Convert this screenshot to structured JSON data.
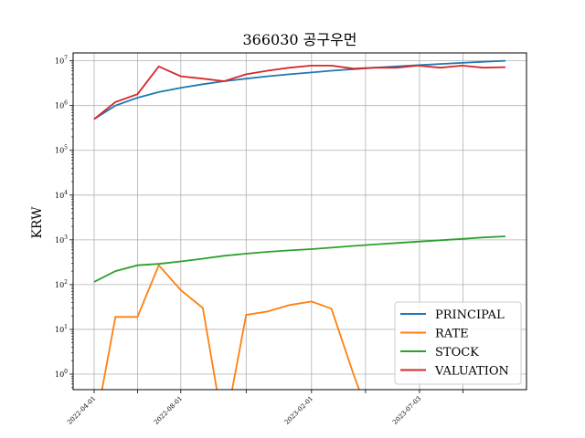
{
  "chart_data": {
    "type": "line",
    "title": "366030 공구우먼",
    "ylabel": "KRW",
    "xlabel": "",
    "yscale": "log",
    "ylim": [
      0.45,
      15000000
    ],
    "grid": true,
    "legend_position": "lower-right",
    "x_ticks": [
      "2022-04-01",
      "2022-08-01",
      "2023-02-01",
      "2023-07-03"
    ],
    "y_ticks": [
      "10^0",
      "10^1",
      "10^2",
      "10^3",
      "10^4",
      "10^5",
      "10^6",
      "10^7"
    ],
    "x": [
      "2022-04-01",
      "2022-05-01",
      "2022-06-01",
      "2022-07-01",
      "2022-08-01",
      "2022-09-01",
      "2022-10-01",
      "2022-11-01",
      "2022-12-01",
      "2023-01-01",
      "2023-02-01",
      "2023-03-01",
      "2023-04-01",
      "2023-05-01",
      "2023-06-01",
      "2023-07-01",
      "2023-08-01",
      "2023-09-01",
      "2023-10-01",
      "2023-11-01"
    ],
    "series": [
      {
        "name": "PRINCIPAL",
        "color": "#1f77b4",
        "values": [
          500000,
          1000000,
          1500000,
          2000000,
          2500000,
          3000000,
          3500000,
          4000000,
          4500000,
          5000000,
          5500000,
          6000000,
          6500000,
          7000000,
          7500000,
          8000000,
          8500000,
          9000000,
          9500000,
          10000000
        ]
      },
      {
        "name": "RATE",
        "color": "#ff7f0e",
        "values": [
          0.05,
          19,
          19,
          270,
          75,
          30,
          0.05,
          21,
          25,
          35,
          42,
          29,
          1,
          0.05,
          null,
          null,
          null,
          null,
          null,
          null
        ]
      },
      {
        "name": "STOCK",
        "color": "#2ca02c",
        "values": [
          115,
          200,
          270,
          290,
          330,
          380,
          440,
          490,
          540,
          580,
          620,
          670,
          730,
          790,
          850,
          910,
          980,
          1050,
          1130,
          1200
        ]
      },
      {
        "name": "VALUATION",
        "color": "#d62728",
        "values": [
          500000,
          1200000,
          1800000,
          7500000,
          4500000,
          4000000,
          3500000,
          5000000,
          6000000,
          7000000,
          7800000,
          7800000,
          6700000,
          7000000,
          7000000,
          7800000,
          7000000,
          7800000,
          7000000,
          7200000
        ]
      }
    ]
  }
}
